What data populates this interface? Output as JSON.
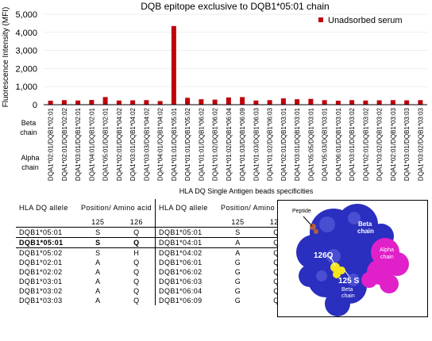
{
  "chart_data": {
    "type": "bar",
    "title": "DQB epitope exclusive to  DQB1*05:01  chain",
    "ylabel": "Fluorescence Intensity (MFI)",
    "xlabel": "HLA DQ Single Antigen beads specificities",
    "ylim": [
      0,
      5000
    ],
    "yticks": [
      "0",
      "1,000",
      "2,000",
      "3,000",
      "4,000",
      "5,000"
    ],
    "ytick_values": [
      0,
      1000,
      2000,
      3000,
      4000,
      5000
    ],
    "legend": "Unadsorbed  serum",
    "legend_position": "top-right",
    "row_labels": [
      "Beta chain",
      "Alpha chain"
    ],
    "bar_color": "#c0000b",
    "categories": [
      "DQA1*02:01/DQB1*02:01",
      "DQA1*02:01/DQB1*02:02",
      "DQA1*03:01/DQB1*02:01",
      "DQA1*04:01/DQB1*02:01",
      "DQA1*05:01/DQB1*02:01",
      "DQA1*02:01/DQB1*04:02",
      "DQA1*03:01/DQB1*04:02",
      "DQA1*03:03/DQB1*04:02",
      "DQA1*04:01/DQB1*04:02",
      "DQA1*01:01/DQB1*05:01",
      "DQA1*01:01/DQB1*05:02",
      "DQA1*01:01/DQB1*06:02",
      "DQA1*01:02/DQB1*06:02",
      "DQA1*01:02/DQB1*06:04",
      "DQA1*01:03/DQB1*06:09",
      "DQA1*01:03/DQB1*06:03",
      "DQA1*01:02/DQB1*06:03",
      "DQA1*02:01/DQB1*03:01",
      "DQA1*03:01/DQB1*03:01",
      "DQA1*05:05/DQB1*03:01",
      "DQA1*05:03/DQB1*03:01",
      "DQA1*06:01/DQB1*03:01",
      "DQA1*03:01/DQB1*03:02",
      "DQA1*02:01/DQB1*03:02",
      "DQA1*03:02/DQB1*03:02",
      "DQA1*02:01/DQB1*03:03",
      "DQA1*03:01/DQB1*03:03",
      "DQA1*03:02/DQB1*03:03"
    ],
    "series": [
      {
        "name": "Unadsorbed  serum",
        "values": [
          220,
          250,
          230,
          260,
          420,
          230,
          240,
          250,
          200,
          4350,
          380,
          300,
          280,
          400,
          420,
          230,
          250,
          350,
          300,
          320,
          250,
          220,
          250,
          230,
          240,
          250,
          240,
          250
        ]
      }
    ]
  },
  "table": {
    "headers": {
      "allele": "HLA DQ allele",
      "position": "Position/ Amino acid",
      "pos1": "125",
      "pos2": "126"
    },
    "left_rows": [
      {
        "allele": "DQB1*05:01",
        "a": "S",
        "b": "Q"
      },
      {
        "allele": "DQB1*05:01",
        "a": "S",
        "b": "Q"
      },
      {
        "allele": "DQB1*05:02",
        "a": "S",
        "b": "H"
      },
      {
        "allele": "DQB1*02:01",
        "a": "A",
        "b": "Q"
      },
      {
        "allele": "DQB1*02:02",
        "a": "A",
        "b": "Q"
      },
      {
        "allele": "DQB1*03:01",
        "a": "A",
        "b": "Q"
      },
      {
        "allele": "DQB1*03:02",
        "a": "A",
        "b": "Q"
      },
      {
        "allele": "DQB1*03:03",
        "a": "A",
        "b": "Q"
      }
    ],
    "right_rows": [
      {
        "allele": "DQB1*05:01",
        "a": "S",
        "b": "Q"
      },
      {
        "allele": "DQB1*04:01",
        "a": "A",
        "b": "Q"
      },
      {
        "allele": "DQB1*04:02",
        "a": "A",
        "b": "Q"
      },
      {
        "allele": "DQB1*06:01",
        "a": "G",
        "b": "Q"
      },
      {
        "allele": "DQB1*06:02",
        "a": "G",
        "b": "Q"
      },
      {
        "allele": "DQB1*06:03",
        "a": "G",
        "b": "Q"
      },
      {
        "allele": "DQB1*06:04",
        "a": "G",
        "b": "Q"
      },
      {
        "allele": "DQB1*06:09",
        "a": "G",
        "b": "Q"
      }
    ]
  },
  "structure": {
    "labels": {
      "peptide": "Peptide",
      "beta": "Beta chain",
      "alpha": "Alpha chain",
      "res126": "126Q",
      "res125": "125 S",
      "res125_sub": "Beta chain"
    },
    "colors": {
      "beta_chain": "#2a2fbf",
      "alpha_chain": "#e020c8",
      "residue": "#f2e51a",
      "peptide": "#b06040",
      "background": "#0b0b1a"
    }
  }
}
